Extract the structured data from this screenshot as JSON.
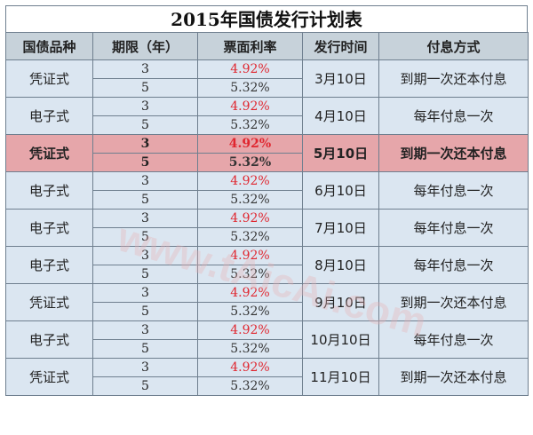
{
  "title": "2015年国债发行计划表",
  "headers": [
    "国债品种",
    "期限（年）",
    "票面利率",
    "发行时间",
    "付息方式"
  ],
  "rows": [
    {
      "type": "凭证式",
      "terms": [
        "3",
        "5"
      ],
      "rates": [
        "4.92%",
        "5.32%"
      ],
      "date": "3月10日",
      "payment": "到期一次还本付息",
      "highlight": false
    },
    {
      "type": "电子式",
      "terms": [
        "3",
        "5"
      ],
      "rates": [
        "4.92%",
        "5.32%"
      ],
      "date": "4月10日",
      "payment": "每年付息一次",
      "highlight": false
    },
    {
      "type": "凭证式",
      "terms": [
        "3",
        "5"
      ],
      "rates": [
        "4.92%",
        "5.32%"
      ],
      "date": "5月10日",
      "payment": "到期一次还本付息",
      "highlight": true
    },
    {
      "type": "电子式",
      "terms": [
        "3",
        "5"
      ],
      "rates": [
        "4.92%",
        "5.32%"
      ],
      "date": "6月10日",
      "payment": "每年付息一次",
      "highlight": false
    },
    {
      "type": "电子式",
      "terms": [
        "3",
        "5"
      ],
      "rates": [
        "4.92%",
        "5.32%"
      ],
      "date": "7月10日",
      "payment": "每年付息一次",
      "highlight": false
    },
    {
      "type": "电子式",
      "terms": [
        "3",
        "5"
      ],
      "rates": [
        "4.92%",
        "5.32%"
      ],
      "date": "8月10日",
      "payment": "每年付息一次",
      "highlight": false
    },
    {
      "type": "凭证式",
      "terms": [
        "3",
        "5"
      ],
      "rates": [
        "4.92%",
        "5.32%"
      ],
      "date": "9月10日",
      "payment": "到期一次还本付息",
      "highlight": false
    },
    {
      "type": "电子式",
      "terms": [
        "3",
        "5"
      ],
      "rates": [
        "4.92%",
        "5.32%"
      ],
      "date": "10月10日",
      "payment": "每年付息一次",
      "highlight": false
    },
    {
      "type": "凭证式",
      "terms": [
        "3",
        "5"
      ],
      "rates": [
        "4.92%",
        "5.32%"
      ],
      "date": "11月10日",
      "payment": "到期一次还本付息",
      "highlight": false
    }
  ],
  "watermark": {
    "url": "www.tAicAi.com",
    "color": "#e7b3b5"
  }
}
